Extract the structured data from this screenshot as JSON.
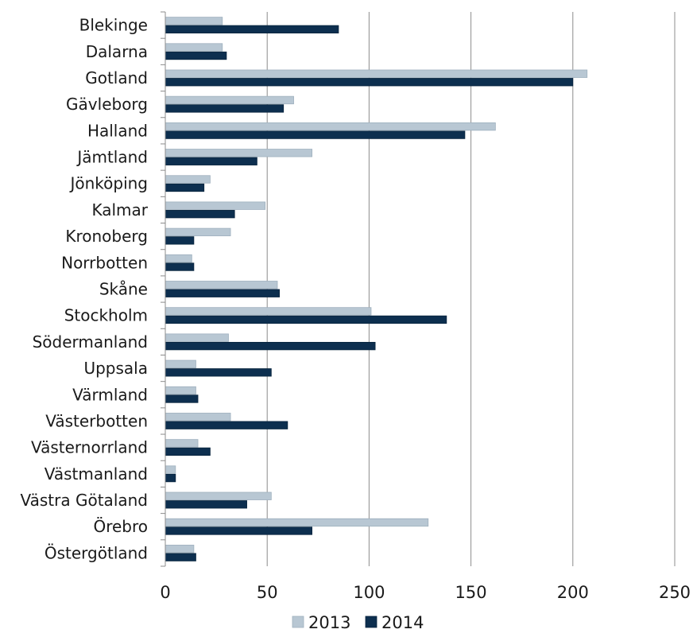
{
  "chart_data": {
    "type": "bar",
    "orientation": "horizontal",
    "categories": [
      "Blekinge",
      "Dalarna",
      "Gotland",
      "Gävleborg",
      "Halland",
      "Jämtland",
      "Jönköping",
      "Kalmar",
      "Kronoberg",
      "Norrbotten",
      "Skåne",
      "Stockholm",
      "Södermanland",
      "Uppsala",
      "Värmland",
      "Västerbotten",
      "Västernorrland",
      "Västmanland",
      "Västra Götaland",
      "Örebro",
      "Östergötland"
    ],
    "series": [
      {
        "name": "2013",
        "color": "#b8c7d3",
        "values": [
          28,
          28,
          207,
          63,
          162,
          72,
          22,
          49,
          32,
          13,
          55,
          101,
          31,
          15,
          15,
          32,
          16,
          5,
          52,
          129,
          14
        ]
      },
      {
        "name": "2014",
        "color": "#0d2f4f",
        "values": [
          85,
          30,
          200,
          58,
          147,
          45,
          19,
          34,
          14,
          14,
          56,
          138,
          103,
          52,
          16,
          60,
          22,
          5,
          40,
          72,
          15
        ]
      }
    ],
    "xlim": [
      0,
      250
    ],
    "xticks": [
      "0",
      "50",
      "100",
      "150",
      "200",
      "250"
    ],
    "grid": "vertical",
    "legend": "bottom",
    "title": "",
    "xlabel": "",
    "ylabel": ""
  }
}
